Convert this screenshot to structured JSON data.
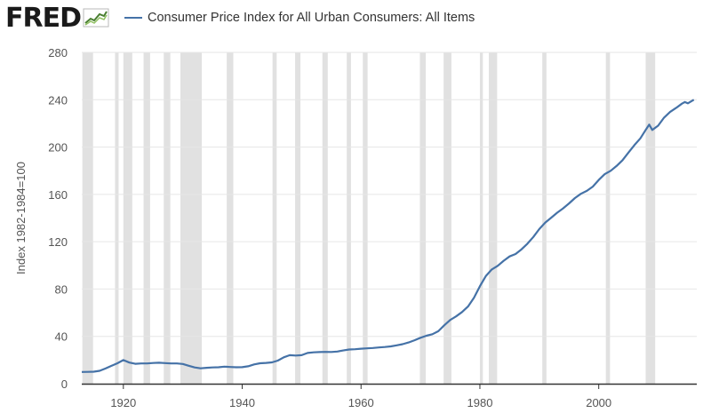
{
  "header": {
    "logo_text": "FRED",
    "logo_icon": "trend-line-icon"
  },
  "colors": {
    "series": "#4572a7",
    "recession": "#e1e1e1",
    "grid": "#e6e6e6",
    "axis": "#333333"
  },
  "chart_data": {
    "type": "line",
    "title": "",
    "xlabel": "",
    "ylabel": "Index 1982-1984=100",
    "xlim": [
      1913,
      2016.5
    ],
    "ylim": [
      0,
      280
    ],
    "grid": true,
    "legend_position": "top",
    "x_ticks": [
      1920,
      1940,
      1960,
      1980,
      2000
    ],
    "y_ticks": [
      0,
      40,
      80,
      120,
      160,
      200,
      240,
      280
    ],
    "recession_shading": true,
    "recessions": [
      [
        1913.1,
        1914.9
      ],
      [
        1918.6,
        1919.2
      ],
      [
        1920.0,
        1921.5
      ],
      [
        1923.4,
        1924.5
      ],
      [
        1926.8,
        1927.9
      ],
      [
        1929.6,
        1933.2
      ],
      [
        1937.4,
        1938.5
      ],
      [
        1945.1,
        1945.8
      ],
      [
        1948.9,
        1949.8
      ],
      [
        1953.5,
        1954.4
      ],
      [
        1957.6,
        1958.3
      ],
      [
        1960.3,
        1961.1
      ],
      [
        1969.9,
        1970.9
      ],
      [
        1973.9,
        1975.2
      ],
      [
        1980.0,
        1980.5
      ],
      [
        1981.5,
        1982.9
      ],
      [
        1990.5,
        1991.2
      ],
      [
        2001.2,
        2001.9
      ],
      [
        2007.9,
        2009.5
      ]
    ],
    "series": [
      {
        "name": "Consumer Price Index for All Urban Consumers: All Items",
        "x": [
          1913,
          1914,
          1915,
          1916,
          1917,
          1918,
          1919,
          1920,
          1921,
          1922,
          1923,
          1924,
          1925,
          1926,
          1927,
          1928,
          1929,
          1930,
          1931,
          1932,
          1933,
          1934,
          1935,
          1936,
          1937,
          1938,
          1939,
          1940,
          1941,
          1942,
          1943,
          1944,
          1945,
          1946,
          1947,
          1948,
          1949,
          1950,
          1951,
          1952,
          1953,
          1954,
          1955,
          1956,
          1957,
          1958,
          1959,
          1960,
          1961,
          1962,
          1963,
          1964,
          1965,
          1966,
          1967,
          1968,
          1969,
          1970,
          1971,
          1972,
          1973,
          1974,
          1975,
          1976,
          1977,
          1978,
          1979,
          1980,
          1981,
          1982,
          1983,
          1984,
          1985,
          1986,
          1987,
          1988,
          1989,
          1990,
          1991,
          1992,
          1993,
          1994,
          1995,
          1996,
          1997,
          1998,
          1999,
          2000,
          2001,
          2002,
          2003,
          2004,
          2005,
          2006,
          2007,
          2008,
          2008.5,
          2009,
          2010,
          2011,
          2012,
          2013,
          2014,
          2014.5,
          2015,
          2016
        ],
        "values": [
          9.9,
          10.0,
          10.1,
          10.9,
          12.8,
          15.1,
          17.3,
          20.0,
          17.9,
          16.8,
          17.1,
          17.1,
          17.5,
          17.7,
          17.4,
          17.1,
          17.1,
          16.7,
          15.2,
          13.7,
          13.0,
          13.4,
          13.7,
          13.9,
          14.4,
          14.1,
          13.9,
          14.0,
          14.7,
          16.3,
          17.3,
          17.6,
          18.0,
          19.5,
          22.3,
          24.1,
          23.8,
          24.1,
          26.0,
          26.5,
          26.7,
          26.9,
          26.8,
          27.2,
          28.1,
          28.9,
          29.1,
          29.6,
          29.9,
          30.2,
          30.6,
          31.0,
          31.5,
          32.4,
          33.4,
          34.8,
          36.7,
          38.8,
          40.5,
          41.8,
          44.4,
          49.3,
          53.8,
          56.9,
          60.6,
          65.2,
          72.6,
          82.4,
          90.9,
          96.5,
          99.6,
          103.9,
          107.6,
          109.6,
          113.6,
          118.3,
          124.0,
          130.7,
          136.2,
          140.3,
          144.5,
          148.2,
          152.4,
          156.9,
          160.5,
          163.0,
          166.6,
          172.2,
          177.1,
          179.9,
          184.0,
          188.9,
          195.3,
          201.6,
          207.3,
          215.3,
          219.0,
          214.5,
          218.1,
          224.9,
          229.6,
          233.0,
          236.7,
          238.0,
          237.0,
          240.0
        ]
      }
    ]
  }
}
